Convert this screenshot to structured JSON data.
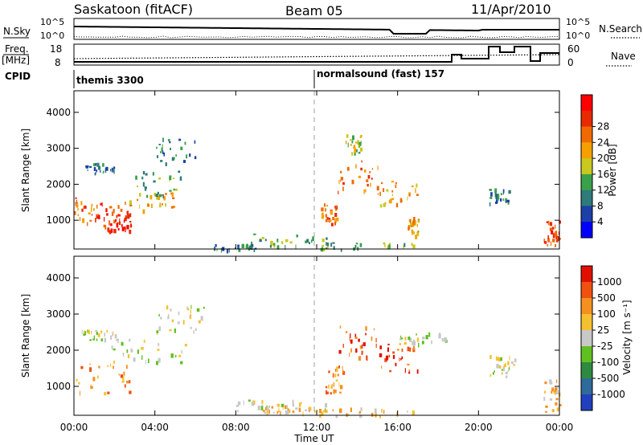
{
  "header": {
    "station": "Saskatoon (fitACF)",
    "beam": "Beam 05",
    "date": "11/Apr/2010"
  },
  "top_panels": {
    "nsky_label": "N.Sky",
    "nsky_ticks": [
      "10^5",
      "10^0"
    ],
    "nsearch_label": "N.Search",
    "freq_label_1": "Freq.",
    "freq_label_2": "[MHz]",
    "freq_ticks": [
      "18",
      "8"
    ],
    "nave_label": "Nave",
    "nave_ticks": [
      "60",
      "0"
    ],
    "cpid_label": "CPID",
    "cpid_segments": [
      {
        "start_h": 0,
        "label": "themis 3300"
      },
      {
        "start_h": 12,
        "label": "normalsound (fast) 157"
      }
    ]
  },
  "chart_data": [
    {
      "type": "heatmap",
      "name": "power",
      "ylabel": "Slant Range [km]",
      "xlabel": "Time UT",
      "x_range_hours": [
        0,
        24
      ],
      "xticks": [
        "00:00",
        "04:00",
        "08:00",
        "12:00",
        "16:00",
        "20:00",
        "00:00"
      ],
      "ylim": [
        200,
        4600
      ],
      "yticks": [
        1000,
        2000,
        3000,
        4000
      ],
      "colorbar": {
        "label": "Power [dB]",
        "ticks": [
          "4",
          "8",
          "12",
          "16",
          "20",
          "24",
          "28"
        ],
        "colors": [
          "#0000ff",
          "#1c3fa8",
          "#2f7a7a",
          "#3aa04a",
          "#c8c81e",
          "#f5a000",
          "#f06a00",
          "#e82a00",
          "#ff0000"
        ]
      },
      "blobs": [
        {
          "t": [
            0.0,
            1.2
          ],
          "r": [
            900,
            1700
          ],
          "level": 6
        },
        {
          "t": [
            1.2,
            2.8
          ],
          "r": [
            800,
            1500
          ],
          "level": 7
        },
        {
          "t": [
            1.6,
            2.8
          ],
          "r": [
            700,
            1200
          ],
          "level": 8
        },
        {
          "t": [
            0.5,
            2.0
          ],
          "r": [
            2300,
            2600
          ],
          "level": 2
        },
        {
          "t": [
            2.5,
            5.0
          ],
          "r": [
            1300,
            1800
          ],
          "level": 5
        },
        {
          "t": [
            3.0,
            5.5
          ],
          "r": [
            1700,
            2400
          ],
          "level": 3
        },
        {
          "t": [
            3.5,
            6.0
          ],
          "r": [
            2600,
            3300
          ],
          "level": 2
        },
        {
          "t": [
            8.5,
            12.5
          ],
          "r": [
            300,
            650
          ],
          "level": 3
        },
        {
          "t": [
            6.5,
            9.0
          ],
          "r": [
            200,
            350
          ],
          "level": 2
        },
        {
          "t": [
            12.2,
            13.0
          ],
          "r": [
            900,
            1500
          ],
          "level": 6
        },
        {
          "t": [
            13.0,
            15.0
          ],
          "r": [
            1800,
            2700
          ],
          "level": 6
        },
        {
          "t": [
            13.4,
            14.2
          ],
          "r": [
            2900,
            3400
          ],
          "level": 4
        },
        {
          "t": [
            15.0,
            17.0
          ],
          "r": [
            1400,
            2100
          ],
          "level": 5
        },
        {
          "t": [
            16.5,
            17.0
          ],
          "r": [
            600,
            1100
          ],
          "level": 5
        },
        {
          "t": [
            20.5,
            21.5
          ],
          "r": [
            1500,
            1900
          ],
          "level": 2
        },
        {
          "t": [
            23.2,
            24.0
          ],
          "r": [
            300,
            1100
          ],
          "level": 7
        },
        {
          "t": [
            12.0,
            17.0
          ],
          "r": [
            200,
            400
          ],
          "level": 3
        }
      ]
    },
    {
      "type": "heatmap",
      "name": "velocity",
      "ylabel": "Slant Range [km]",
      "xlabel": "Time UT",
      "x_range_hours": [
        0,
        24
      ],
      "xticks": [
        "00:00",
        "04:00",
        "08:00",
        "12:00",
        "16:00",
        "20:00",
        "00:00"
      ],
      "ylim": [
        200,
        4600
      ],
      "yticks": [
        1000,
        2000,
        3000,
        4000
      ],
      "colorbar": {
        "label": "Velocity [m s⁻¹]",
        "ticks": [
          "1000",
          "500",
          "100",
          "25",
          "-25",
          "-100",
          "-500",
          "-1000"
        ],
        "colors": [
          "#2040c0",
          "#2f6a9a",
          "#2e8a40",
          "#60c020",
          "#c8c8c8",
          "#f5c030",
          "#f59020",
          "#f05010",
          "#e01000"
        ]
      },
      "blobs": [
        {
          "t": [
            0.0,
            2.8
          ],
          "r": [
            800,
            1700
          ],
          "level": 6
        },
        {
          "t": [
            1.5,
            5.5
          ],
          "r": [
            1700,
            2500
          ],
          "level": 4
        },
        {
          "t": [
            4.0,
            6.5
          ],
          "r": [
            2500,
            3300
          ],
          "level": 4
        },
        {
          "t": [
            0.3,
            2.2
          ],
          "r": [
            2300,
            2600
          ],
          "level": 4
        },
        {
          "t": [
            8.0,
            12.5
          ],
          "r": [
            300,
            650
          ],
          "level": 4
        },
        {
          "t": [
            9.0,
            12.0
          ],
          "r": [
            300,
            500
          ],
          "level": 5
        },
        {
          "t": [
            12.2,
            13.3
          ],
          "r": [
            800,
            1600
          ],
          "level": 6
        },
        {
          "t": [
            13.0,
            15.0
          ],
          "r": [
            1800,
            2700
          ],
          "level": 7
        },
        {
          "t": [
            15.0,
            17.0
          ],
          "r": [
            1400,
            2200
          ],
          "level": 7
        },
        {
          "t": [
            16.0,
            18.5
          ],
          "r": [
            2200,
            2500
          ],
          "level": 4
        },
        {
          "t": [
            20.5,
            21.8
          ],
          "r": [
            1300,
            1900
          ],
          "level": 4
        },
        {
          "t": [
            23.2,
            24.0
          ],
          "r": [
            300,
            1200
          ],
          "level": 5
        },
        {
          "t": [
            12.0,
            17.0
          ],
          "r": [
            200,
            450
          ],
          "level": 5
        }
      ]
    }
  ],
  "footer": {
    "xlabel": "Time UT"
  }
}
